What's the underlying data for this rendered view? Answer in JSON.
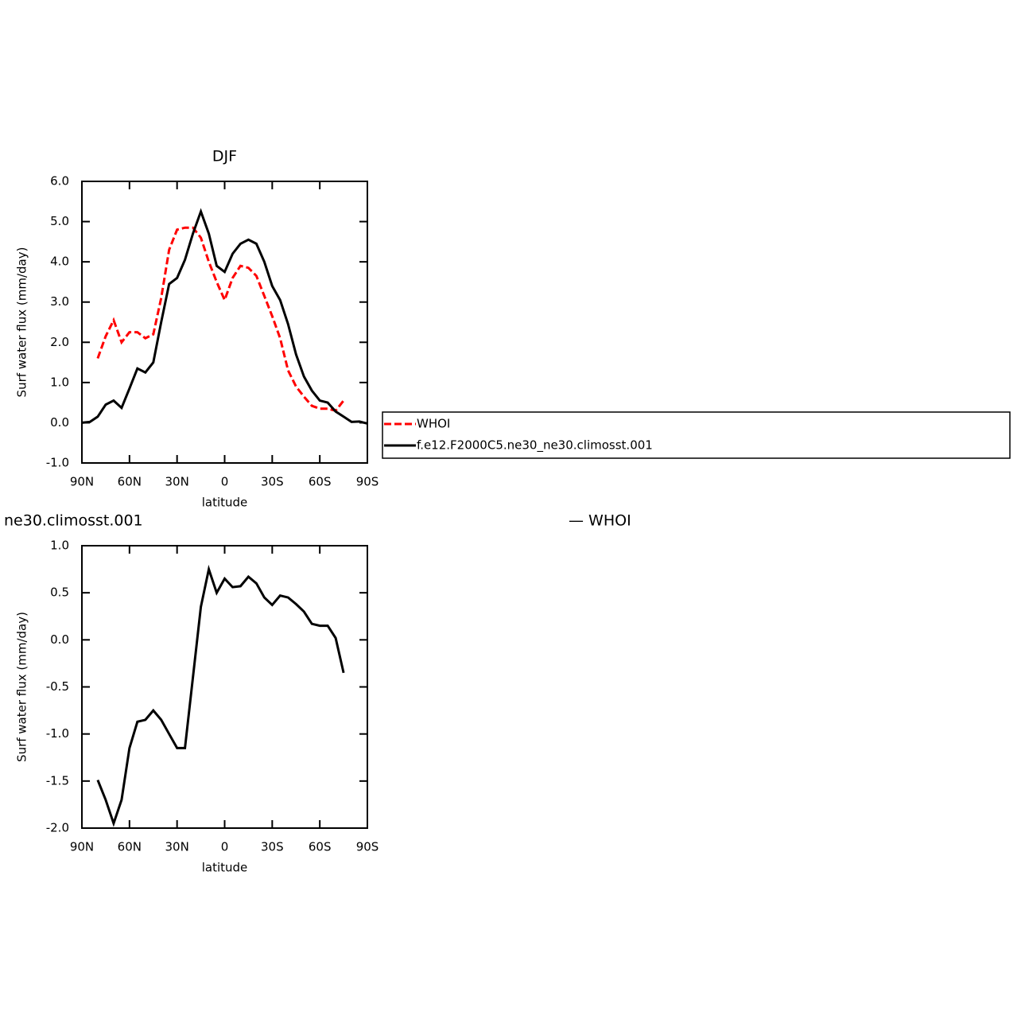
{
  "chart_data": [
    {
      "type": "line",
      "title": "DJF",
      "xlabel": "latitude",
      "ylabel": "Surf water flux (mm/day)",
      "x": [
        90,
        85,
        80,
        75,
        70,
        65,
        60,
        55,
        50,
        45,
        40,
        35,
        30,
        25,
        20,
        15,
        10,
        5,
        0,
        -5,
        -10,
        -15,
        -20,
        -25,
        -30,
        -35,
        -40,
        -45,
        -50,
        -55,
        -60,
        -65,
        -70,
        -75,
        -80,
        -85,
        -90
      ],
      "series": [
        {
          "name": "WHOI",
          "color": "#ff0000",
          "line_style": "dashed",
          "values": [
            null,
            null,
            1.6,
            2.15,
            2.55,
            2.0,
            2.25,
            2.25,
            2.1,
            2.2,
            3.1,
            4.3,
            4.8,
            4.85,
            4.85,
            4.6,
            4.0,
            3.5,
            3.05,
            3.6,
            3.9,
            3.85,
            3.65,
            3.15,
            2.65,
            2.1,
            1.3,
            0.9,
            0.65,
            0.42,
            0.35,
            0.35,
            0.3,
            0.55,
            null,
            null,
            null
          ]
        },
        {
          "name": "f.e12.F2000C5.ne30_ne30.climosst.001",
          "color": "#000000",
          "line_style": "solid",
          "values": [
            0.0,
            0.02,
            0.15,
            0.45,
            0.55,
            0.37,
            0.85,
            1.35,
            1.25,
            1.5,
            2.5,
            3.45,
            3.6,
            4.05,
            4.7,
            5.25,
            4.7,
            3.9,
            3.75,
            4.2,
            4.45,
            4.55,
            4.45,
            4.0,
            3.4,
            3.05,
            2.45,
            1.7,
            1.15,
            0.8,
            0.55,
            0.5,
            0.28,
            0.15,
            0.02,
            0.03,
            -0.02
          ]
        }
      ],
      "xlim": [
        90,
        -90
      ],
      "xticks": [
        {
          "value": 90,
          "label": "90N"
        },
        {
          "value": 60,
          "label": "60N"
        },
        {
          "value": 30,
          "label": "30N"
        },
        0,
        {
          "value": -30,
          "label": "30S"
        },
        {
          "value": -60,
          "label": "60S"
        },
        {
          "value": -90,
          "label": "90S"
        }
      ],
      "ylim": [
        -1,
        6
      ],
      "yticks": [
        {
          "value": -1,
          "label": "-1.0"
        },
        {
          "value": 0,
          "label": "0.0"
        },
        {
          "value": 1,
          "label": "1.0"
        },
        {
          "value": 2,
          "label": "2.0"
        },
        {
          "value": 3,
          "label": "3.0"
        },
        {
          "value": 4,
          "label": "4.0"
        },
        {
          "value": 5,
          "label": "5.0"
        },
        {
          "value": 6,
          "label": "6.0"
        }
      ],
      "legend": "right"
    },
    {
      "type": "line",
      "title": "ne30.climosst.001",
      "title_right": "— WHOI",
      "xlabel": "latitude",
      "ylabel": "Surf water flux (mm/day)",
      "x": [
        90,
        85,
        80,
        75,
        70,
        65,
        60,
        55,
        50,
        45,
        40,
        35,
        30,
        25,
        20,
        15,
        10,
        5,
        0,
        -5,
        -10,
        -15,
        -20,
        -25,
        -30,
        -35,
        -40,
        -45,
        -50,
        -55,
        -60,
        -65,
        -70,
        -75,
        -80,
        -85,
        -90
      ],
      "series": [
        {
          "color": "#000000",
          "line_style": "solid",
          "values": [
            null,
            null,
            -1.49,
            -1.7,
            -1.95,
            -1.7,
            -1.15,
            -0.87,
            -0.85,
            -0.75,
            -0.85,
            -1.0,
            -1.15,
            -1.15,
            -0.4,
            0.35,
            0.75,
            0.5,
            0.65,
            0.56,
            0.57,
            0.67,
            0.6,
            0.45,
            0.37,
            0.47,
            0.45,
            0.38,
            0.3,
            0.17,
            0.15,
            0.15,
            0.02,
            -0.35,
            null,
            null,
            null
          ]
        }
      ],
      "xlim": [
        90,
        -90
      ],
      "xticks": [
        {
          "value": 90,
          "label": "90N"
        },
        {
          "value": 60,
          "label": "60N"
        },
        {
          "value": 30,
          "label": "30N"
        },
        0,
        {
          "value": -30,
          "label": "30S"
        },
        {
          "value": -60,
          "label": "60S"
        },
        {
          "value": -90,
          "label": "90S"
        }
      ],
      "ylim": [
        -2,
        1
      ],
      "yticks": [
        {
          "value": -2,
          "label": "-2.0"
        },
        -1.5,
        {
          "value": -1,
          "label": "-1.0"
        },
        -0.5,
        {
          "value": 0,
          "label": "0.0"
        },
        0.5,
        {
          "value": 1,
          "label": "1.0"
        }
      ]
    }
  ]
}
